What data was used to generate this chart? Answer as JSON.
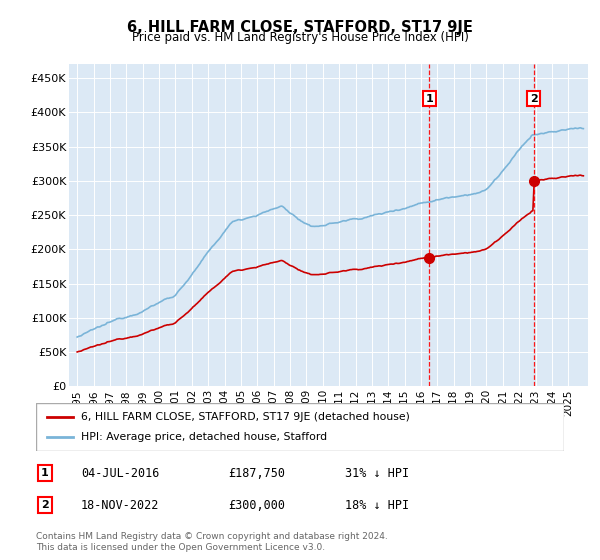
{
  "title": "6, HILL FARM CLOSE, STAFFORD, ST17 9JE",
  "subtitle": "Price paid vs. HM Land Registry's House Price Index (HPI)",
  "plot_bg_color": "#dce9f5",
  "hpi_color": "#7ab4d8",
  "price_color": "#cc0000",
  "annotation1": {
    "date_label": "04-JUL-2016",
    "price": 187750,
    "pct": "31% ↓ HPI",
    "num": "1",
    "x_year": 2016.5
  },
  "annotation2": {
    "date_label": "18-NOV-2022",
    "price": 300000,
    "pct": "18% ↓ HPI",
    "num": "2",
    "x_year": 2022.88
  },
  "legend_property_label": "6, HILL FARM CLOSE, STAFFORD, ST17 9JE (detached house)",
  "legend_hpi_label": "HPI: Average price, detached house, Stafford",
  "footer_line1": "Contains HM Land Registry data © Crown copyright and database right 2024.",
  "footer_line2": "This data is licensed under the Open Government Licence v3.0.",
  "ytick_labels": [
    "£0",
    "£50K",
    "£100K",
    "£150K",
    "£200K",
    "£250K",
    "£300K",
    "£350K",
    "£400K",
    "£450K"
  ],
  "ytick_values": [
    0,
    50000,
    100000,
    150000,
    200000,
    250000,
    300000,
    350000,
    400000,
    450000
  ],
  "ylim": [
    0,
    470000
  ],
  "xlim_start": 1994.5,
  "xlim_end": 2026.2,
  "price1": 187750,
  "price2": 300000
}
